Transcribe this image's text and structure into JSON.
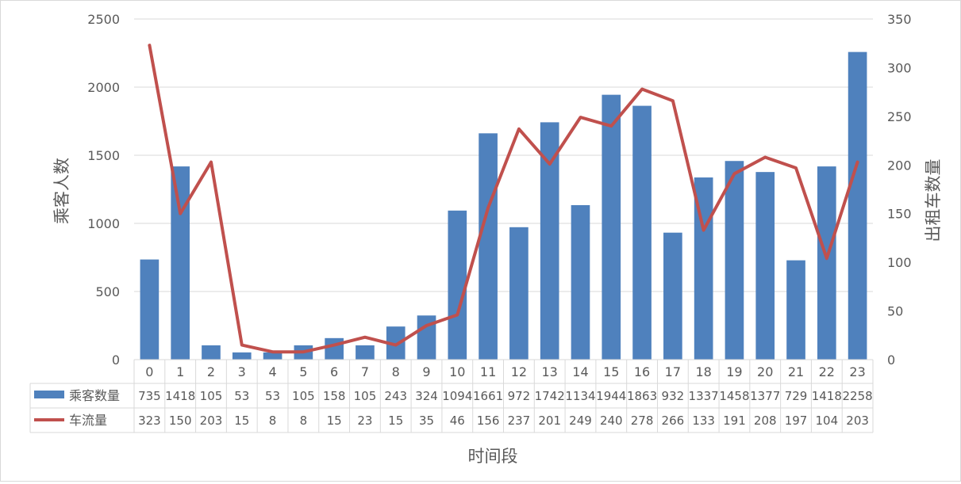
{
  "chart_data": {
    "type": "bar+line",
    "categories": [
      "0",
      "1",
      "2",
      "3",
      "4",
      "5",
      "6",
      "7",
      "8",
      "9",
      "10",
      "11",
      "12",
      "13",
      "14",
      "15",
      "16",
      "17",
      "18",
      "19",
      "20",
      "21",
      "22",
      "23"
    ],
    "series": [
      {
        "name": "乘客数量",
        "type": "bar",
        "axis": "left",
        "color": "#4f81bd",
        "values": [
          735,
          1418,
          105,
          53,
          53,
          105,
          158,
          105,
          243,
          324,
          1094,
          1661,
          972,
          1742,
          1134,
          1944,
          1863,
          932,
          1337,
          1458,
          1377,
          729,
          1418,
          2258
        ]
      },
      {
        "name": "车流量",
        "type": "line",
        "axis": "right",
        "color": "#c0504d",
        "values": [
          323,
          150,
          203,
          15,
          8,
          8,
          15,
          23,
          15,
          35,
          46,
          156,
          237,
          201,
          249,
          240,
          278,
          266,
          133,
          191,
          208,
          197,
          104,
          203
        ]
      }
    ],
    "xlabel": "时间段",
    "ylabel": "乘客人数",
    "y2label": "出租车数量",
    "ylim": [
      0,
      2500
    ],
    "y2lim": [
      0,
      350
    ],
    "yticks": [
      0,
      500,
      1000,
      1500,
      2000,
      2500
    ],
    "y2ticks": [
      0,
      50,
      100,
      150,
      200,
      250,
      300,
      350
    ],
    "grid": true,
    "legend": "data-table"
  }
}
